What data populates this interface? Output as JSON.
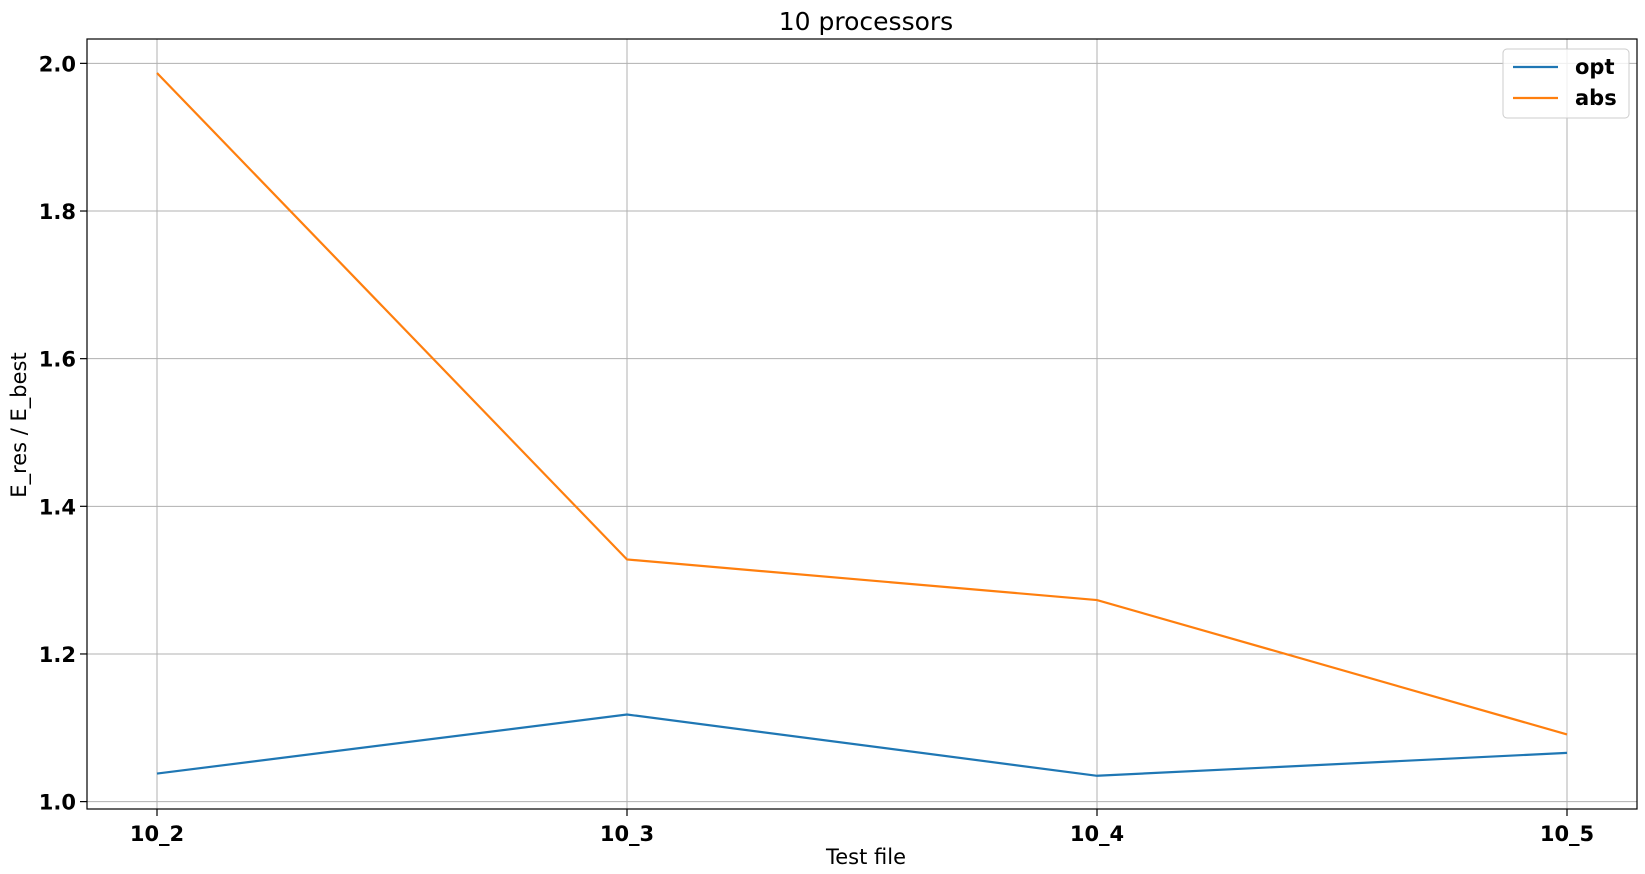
{
  "chart_data": {
    "type": "line",
    "title": "10 processors",
    "xlabel": "Test file",
    "ylabel": "E_res / E_best",
    "categories": [
      "10_2",
      "10_3",
      "10_4",
      "10_5"
    ],
    "ylim": [
      0.99,
      2.033
    ],
    "yticks": [
      1.0,
      1.2,
      1.4,
      1.6,
      1.8,
      2.0
    ],
    "ytick_labels": [
      "1.0",
      "1.2",
      "1.4",
      "1.6",
      "1.8",
      "2.0"
    ],
    "grid": true,
    "legend_position": "top-right",
    "series": [
      {
        "name": "opt",
        "color": "#1f77b4",
        "values": [
          1.038,
          1.118,
          1.035,
          1.066
        ]
      },
      {
        "name": "abs",
        "color": "#ff7f0e",
        "values": [
          1.987,
          1.328,
          1.273,
          1.091
        ]
      }
    ]
  }
}
